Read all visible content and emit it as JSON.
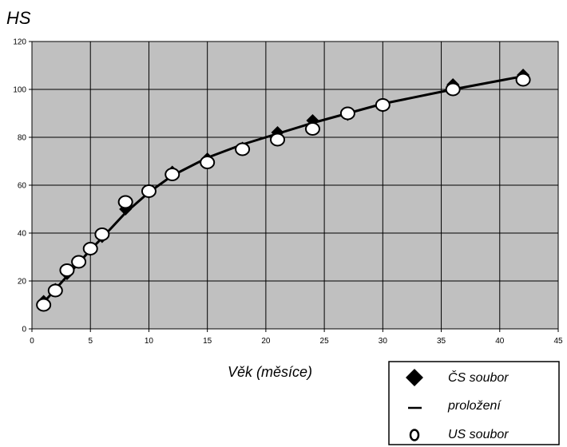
{
  "chart_data": {
    "type": "scatter",
    "title": "HS",
    "xlabel": "Věk (měsíce)",
    "ylabel": "",
    "xlim": [
      0,
      45
    ],
    "ylim": [
      0,
      120
    ],
    "xticks": [
      0,
      5,
      10,
      15,
      20,
      25,
      30,
      35,
      40,
      45
    ],
    "yticks": [
      0,
      20,
      40,
      60,
      80,
      100,
      120
    ],
    "grid": true,
    "background": "#c0c0c0",
    "legend_position": "bottom-right",
    "series": [
      {
        "name": "ČS soubor",
        "marker": "diamond",
        "color": "#000000",
        "x": [
          1,
          2,
          3,
          4,
          5,
          6,
          8,
          10,
          12,
          15,
          18,
          21,
          24,
          27,
          30,
          36,
          42
        ],
        "y": [
          11.5,
          16.5,
          23,
          28,
          33,
          38.5,
          50,
          57,
          65.5,
          71,
          75.5,
          82,
          87,
          89.5,
          93,
          102,
          106
        ]
      },
      {
        "name": "proložení",
        "marker": "line",
        "color": "#000000",
        "x": [
          1,
          2,
          3,
          4,
          5,
          6,
          8,
          10,
          12,
          15,
          18,
          21,
          24,
          27,
          30,
          36,
          42
        ],
        "y": [
          11,
          16.5,
          22,
          27.5,
          33,
          38,
          48.5,
          57,
          64,
          71.5,
          77,
          81.5,
          86,
          90,
          94,
          100,
          105.5
        ]
      },
      {
        "name": "US soubor",
        "marker": "open-circle",
        "color": "#ffffff",
        "x": [
          1,
          2,
          3,
          4,
          5,
          6,
          8,
          10,
          12,
          15,
          18,
          21,
          24,
          27,
          30,
          36,
          42
        ],
        "y": [
          10,
          16,
          24.5,
          28,
          33.5,
          39.5,
          53,
          57.5,
          64.5,
          69.5,
          75,
          79,
          83.5,
          90,
          93.5,
          100,
          104
        ]
      }
    ]
  }
}
